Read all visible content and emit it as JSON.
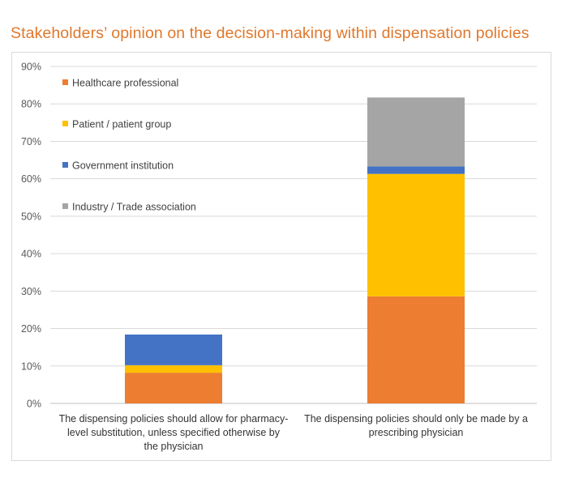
{
  "title": "Stakeholders’ opinion on the decision-making within dispensation policies",
  "chart_data": {
    "type": "bar",
    "stacked": true,
    "title": "Stakeholders’ opinion on the decision-making within dispensation policies",
    "xlabel": "",
    "ylabel": "",
    "ylim": [
      0,
      90
    ],
    "ytick_step": 10,
    "ytick_labels": [
      "0%",
      "10%",
      "20%",
      "30%",
      "40%",
      "50%",
      "60%",
      "70%",
      "80%",
      "90%"
    ],
    "grid": true,
    "legend_position": "top-left",
    "categories": [
      "The dispensing policies should allow for pharmacy-level substitution, unless specified otherwise by the physician",
      "The dispensing policies should only be made by a prescribing physician"
    ],
    "category_lines": [
      [
        "The dispensing policies should allow for pharmacy-",
        "level substitution, unless specified otherwise by",
        "the physician"
      ],
      [
        "The dispensing policies should only be made by a",
        "prescribing physician"
      ]
    ],
    "series": [
      {
        "name": "Healthcare professional",
        "color": "#ed7d31",
        "values": [
          8.2,
          28.6
        ]
      },
      {
        "name": "Patient / patient group",
        "color": "#ffc000",
        "values": [
          2.0,
          32.7
        ]
      },
      {
        "name": "Government institution",
        "color": "#4472c4",
        "values": [
          8.2,
          2.0
        ]
      },
      {
        "name": "Industry / Trade association",
        "color": "#a5a5a5",
        "values": [
          0,
          18.4
        ]
      }
    ]
  }
}
